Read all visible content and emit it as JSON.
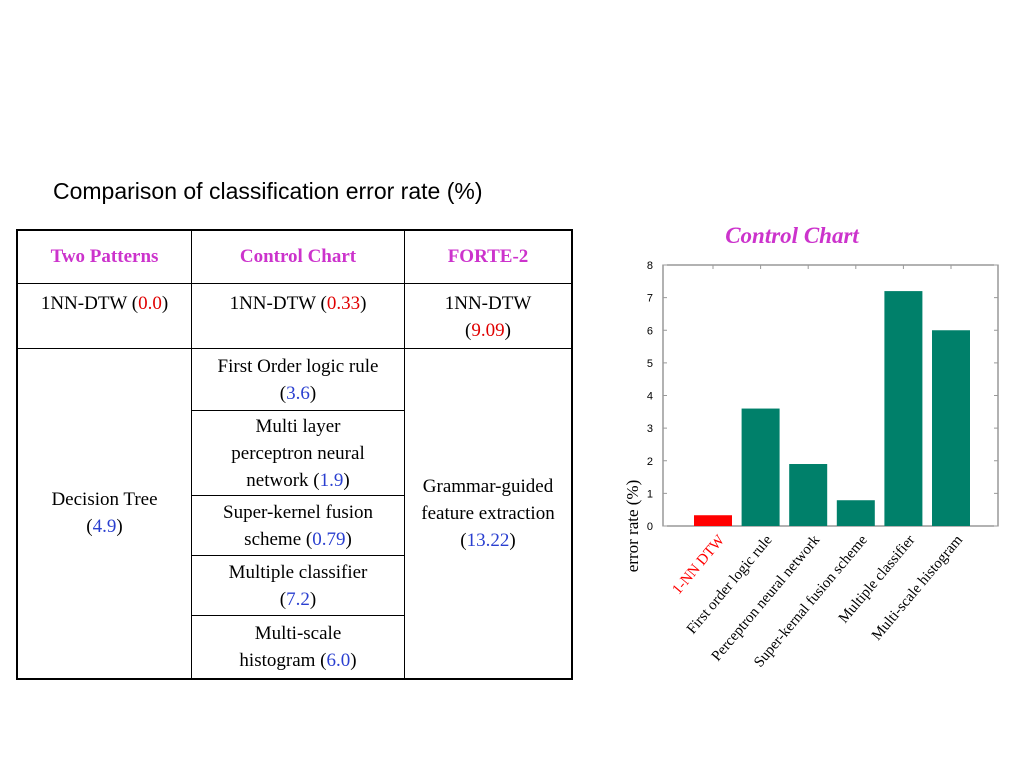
{
  "title": "Comparison of classification error rate (%)",
  "table": {
    "headers": [
      "Two Patterns",
      "Control Chart",
      "FORTE-2"
    ],
    "row1": [
      {
        "label": "1NN-DTW",
        "value": "0.0"
      },
      {
        "label": "1NN-DTW",
        "value": "0.33"
      },
      {
        "label": "1NN-DTW",
        "value": "9.09"
      }
    ],
    "two_patterns": {
      "label": "Decision Tree",
      "value": "4.9"
    },
    "control_chart": [
      {
        "label": "First Order logic rule",
        "value": "3.6"
      },
      {
        "label": "Multi layer perceptron neural network",
        "value": "1.9"
      },
      {
        "label": "Super-kernel fusion scheme",
        "value": "0.79"
      },
      {
        "label": "Multiple classifier",
        "value": "7.2"
      },
      {
        "label": "Multi-scale histogram",
        "value": "6.0"
      }
    ],
    "forte": {
      "label": "Grammar-guided feature extraction",
      "value": "13.22"
    }
  },
  "chart_data": {
    "type": "bar",
    "title": "Control Chart",
    "xlabel": "",
    "ylabel": "error rate (%)",
    "ylim": [
      0,
      8
    ],
    "yticks": [
      "0",
      "1",
      "2",
      "3",
      "4",
      "5",
      "6",
      "7",
      "8"
    ],
    "categories": [
      "1-NN DTW",
      "First order logic rule",
      "Perceptron neural network",
      "Super-kernal fusion scheme",
      "Multiple classifier",
      "Multi-scale histogram"
    ],
    "values": [
      0.33,
      3.6,
      1.9,
      0.79,
      7.2,
      6.0
    ],
    "colors": [
      "#ff0000",
      "#00806a",
      "#00806a",
      "#00806a",
      "#00806a",
      "#00806a"
    ],
    "title_color": "#cc33cc"
  }
}
